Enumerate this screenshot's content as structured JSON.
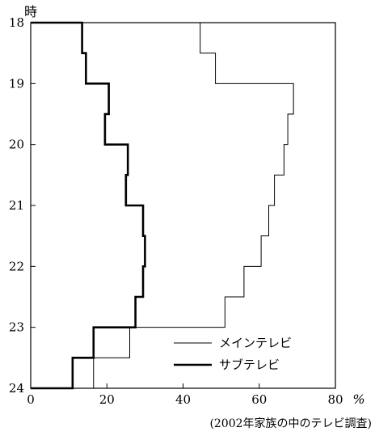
{
  "chart_data": {
    "type": "line",
    "orientation": "step-horizontal",
    "xlabel": "%",
    "ylabel": "時",
    "xlim": [
      0,
      80
    ],
    "ylim": [
      18,
      24
    ],
    "x_ticks": [
      0,
      20,
      40,
      60,
      80
    ],
    "y_ticks": [
      18,
      19,
      20,
      21,
      22,
      23,
      24
    ],
    "grid": false,
    "legend_position": "bottom-right",
    "note": "(2002年家族の中のテレビ調査)",
    "series": [
      {
        "name": "メインテレビ",
        "line_width": "thin",
        "time_bins": [
          18,
          18.5,
          19,
          19.5,
          20,
          20.5,
          21,
          21.5,
          22,
          22.5,
          23,
          23.5,
          24
        ],
        "values": [
          44.5,
          48.5,
          69,
          67.5,
          66.5,
          64,
          62.5,
          60.5,
          56,
          51,
          26,
          16.5
        ]
      },
      {
        "name": "サブテレビ",
        "line_width": "thick",
        "time_bins": [
          18,
          18.5,
          19,
          19.5,
          20,
          20.5,
          21,
          21.5,
          22,
          22.5,
          23,
          23.5,
          24
        ],
        "values": [
          13.5,
          14.5,
          20.5,
          19.5,
          25.5,
          25,
          29.5,
          30,
          29.5,
          27.5,
          16.5,
          11
        ]
      }
    ]
  }
}
